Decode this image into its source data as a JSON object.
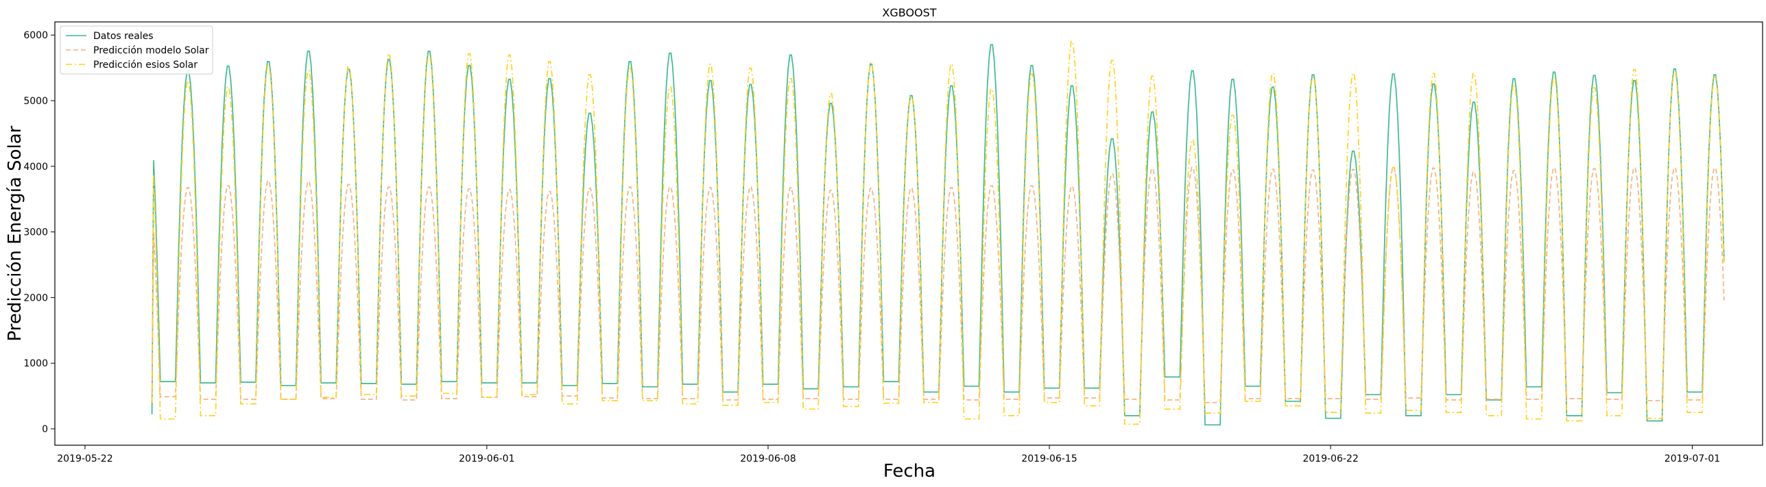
{
  "chart_data": {
    "type": "line",
    "title": "XGBOOST",
    "xlabel": "Fecha",
    "ylabel": "Predicción Energía Solar",
    "xlim": [
      "2019-05-21T06:00",
      "2019-07-02T18:00"
    ],
    "ylim": [
      -250,
      6200
    ],
    "x_ticks": [
      "2019-05-22",
      "2019-06-01",
      "2019-06-08",
      "2019-06-15",
      "2019-06-22",
      "2019-07-01"
    ],
    "y_ticks": [
      0,
      1000,
      2000,
      3000,
      4000,
      5000,
      6000
    ],
    "grid": false,
    "legend_position": "top-left",
    "x_start": "2019-05-23T16:00",
    "x_step_hours": 1,
    "series": [
      {
        "name": "Datos reales",
        "color": "#3dba8e",
        "dash": "solid",
        "night": [
          720,
          700,
          710,
          660,
          700,
          690,
          680,
          720,
          700,
          700,
          660,
          690,
          640,
          680,
          560,
          680,
          610,
          640,
          720,
          560,
          650,
          560,
          620,
          620,
          200,
          790,
          60,
          650,
          420,
          160,
          520,
          200,
          520,
          440,
          640,
          200,
          550,
          120,
          560,
          410,
          320,
          390,
          420,
          280,
          440,
          430,
          700
        ],
        "peak": [
          5150,
          5480,
          5550,
          5620,
          5780,
          5500,
          5650,
          5780,
          5560,
          5350,
          5360,
          4830,
          5620,
          5750,
          5330,
          5270,
          5720,
          4980,
          5580,
          5100,
          5250,
          5880,
          5560,
          5250,
          4440,
          4850,
          5480,
          5350,
          5230,
          5420,
          4250,
          5430,
          5280,
          5000,
          5360,
          5460,
          5410,
          5330,
          5510,
          5420
        ]
      },
      {
        "name": "Predicción modelo Solar",
        "color": "#f3b380",
        "dash": "dashed",
        "night": [
          490,
          450,
          450,
          450,
          460,
          450,
          440,
          460,
          480,
          490,
          500,
          470,
          460,
          460,
          440,
          450,
          460,
          450,
          450,
          450,
          440,
          450,
          470,
          470,
          450,
          440,
          400,
          460,
          460,
          460,
          450,
          470,
          440,
          450,
          450,
          460,
          450,
          430,
          440,
          430,
          470,
          480,
          440,
          420,
          430,
          430,
          470
        ],
        "peak": [
          3780,
          3690,
          3720,
          3790,
          3780,
          3740,
          3700,
          3700,
          3670,
          3660,
          3630,
          3680,
          3700,
          3700,
          3690,
          3700,
          3690,
          3650,
          3680,
          3680,
          3690,
          3720,
          3720,
          3710,
          3900,
          3980,
          4000,
          3960,
          3970,
          3960,
          3970,
          4000,
          3990,
          3930,
          3950,
          3990,
          3980,
          3990,
          3990,
          3990
        ]
      },
      {
        "name": "Predicción esios Solar",
        "color": "#ffd21a",
        "dash": "dashdot",
        "night": [
          150,
          200,
          380,
          450,
          480,
          520,
          500,
          540,
          480,
          520,
          380,
          430,
          430,
          380,
          360,
          400,
          300,
          340,
          390,
          400,
          150,
          200,
          400,
          350,
          70,
          300,
          240,
          420,
          350,
          250,
          240,
          280,
          250,
          200,
          150,
          120,
          200,
          160,
          250,
          330,
          300,
          290,
          300,
          200,
          180,
          280,
          300
        ],
        "peak": [
          5050,
          5320,
          5230,
          5560,
          5480,
          5540,
          5720,
          5720,
          5740,
          5720,
          5620,
          5420,
          5520,
          5230,
          5580,
          5520,
          5360,
          5130,
          5600,
          5080,
          5580,
          5200,
          5430,
          5930,
          5640,
          5400,
          4420,
          4800,
          5440,
          5380,
          5440,
          4000,
          5440,
          5440,
          5270,
          5380,
          5220,
          5500,
          5460,
          5380
        ]
      }
    ],
    "legend": [
      "Datos reales",
      "Predicción modelo Solar",
      "Predicción esios Solar"
    ]
  }
}
